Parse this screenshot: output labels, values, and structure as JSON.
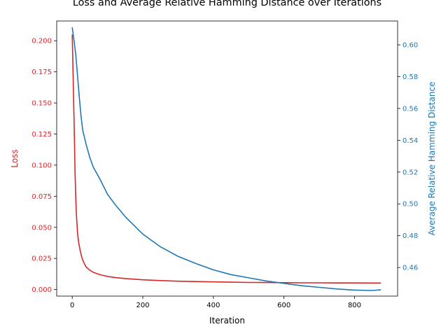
{
  "chart_data": {
    "type": "line",
    "title": "Loss and Average Relative Hamming Distance over Iterations",
    "xlabel": "Iteration",
    "xlim": [
      -44,
      922
    ],
    "xticks": [
      0,
      200,
      400,
      600,
      800
    ],
    "y_left": {
      "label": "Loss",
      "color": "#d62728",
      "lim": [
        -0.0053,
        0.2159
      ],
      "ticks": [
        0.0,
        0.025,
        0.05,
        0.075,
        0.1,
        0.125,
        0.15,
        0.175,
        0.2
      ],
      "tick_labels": [
        "0.000",
        "0.025",
        "0.050",
        "0.075",
        "0.100",
        "0.125",
        "0.150",
        "0.175",
        "0.200"
      ]
    },
    "y_right": {
      "label": "Average Relative Hamming Distance",
      "color": "#1f77b4",
      "lim": [
        0.442,
        0.615
      ],
      "ticks": [
        0.46,
        0.48,
        0.5,
        0.52,
        0.54,
        0.56,
        0.58,
        0.6
      ],
      "tick_labels": [
        "0.46",
        "0.48",
        "0.50",
        "0.52",
        "0.54",
        "0.56",
        "0.58",
        "0.60"
      ]
    },
    "series": [
      {
        "name": "Loss",
        "axis": "left",
        "color": "#d62728",
        "x": [
          0,
          3,
          6,
          8,
          10,
          12,
          15,
          18,
          22,
          26,
          30,
          35,
          40,
          50,
          60,
          80,
          100,
          125,
          150,
          200,
          250,
          300,
          350,
          400,
          450,
          500,
          550,
          600,
          650,
          700,
          750,
          800,
          850,
          875
        ],
        "y": [
          0.205,
          0.165,
          0.125,
          0.095,
          0.074,
          0.06,
          0.046,
          0.038,
          0.032,
          0.027,
          0.0235,
          0.0205,
          0.018,
          0.0155,
          0.0138,
          0.0118,
          0.0105,
          0.0095,
          0.0088,
          0.0078,
          0.0072,
          0.0067,
          0.0064,
          0.0061,
          0.0059,
          0.0057,
          0.0056,
          0.0055,
          0.0054,
          0.0054,
          0.0053,
          0.0053,
          0.0052,
          0.0052
        ]
      },
      {
        "name": "Average Relative Hamming Distance",
        "axis": "right",
        "color": "#1f77b4",
        "x": [
          0,
          5,
          10,
          15,
          20,
          25,
          30,
          40,
          50,
          60,
          80,
          100,
          120,
          150,
          200,
          250,
          300,
          350,
          400,
          450,
          500,
          550,
          600,
          650,
          700,
          750,
          800,
          850,
          875
        ],
        "y": [
          0.611,
          0.603,
          0.594,
          0.581,
          0.567,
          0.555,
          0.546,
          0.537,
          0.529,
          0.523,
          0.515,
          0.506,
          0.5,
          0.492,
          0.481,
          0.473,
          0.467,
          0.4625,
          0.4585,
          0.4555,
          0.4535,
          0.4515,
          0.45,
          0.4485,
          0.4475,
          0.4465,
          0.4458,
          0.4455,
          0.446
        ]
      }
    ],
    "grid": false,
    "legend": "none"
  }
}
